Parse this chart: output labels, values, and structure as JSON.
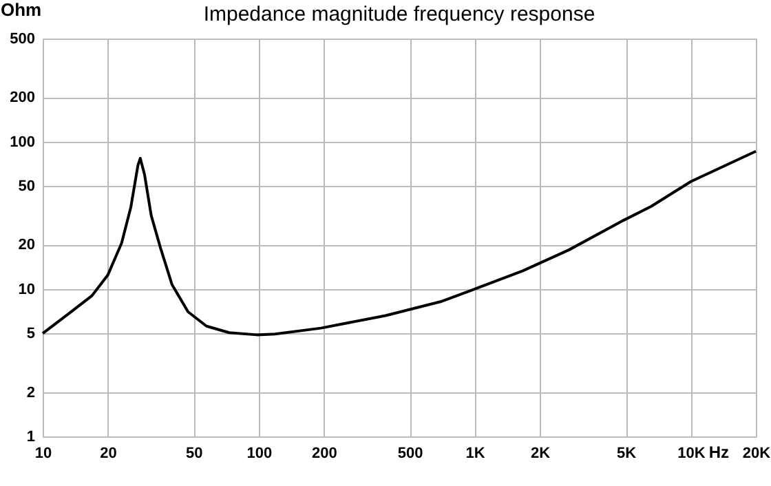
{
  "chart_data": {
    "type": "line",
    "title": "Impedance magnitude frequency response",
    "xlabel": "Hz",
    "ylabel": "Ohm",
    "x": [
      10,
      13.2,
      16.9,
      20,
      23.2,
      25.6,
      27.6,
      28.3,
      29.6,
      31.8,
      35.1,
      39.7,
      47.1,
      57.3,
      73,
      98,
      119,
      194,
      386,
      694,
      929,
      1670,
      2723,
      4896,
      6560,
      10000,
      20000
    ],
    "series": [
      {
        "color": "#000000",
        "values": [
          5.0,
          6.8,
          9.0,
          12.4,
          20.5,
          36,
          69,
          77,
          60,
          31.5,
          19,
          10.7,
          7.0,
          5.6,
          5.06,
          4.89,
          4.95,
          5.43,
          6.6,
          8.2,
          9.6,
          13.3,
          18.4,
          29.3,
          36.4,
          53.6,
          86
        ]
      }
    ],
    "log": "xy",
    "grid": true,
    "marker": "none",
    "line_style": "solid",
    "xlim": [
      10,
      20000
    ],
    "xticks": [
      10,
      20,
      50,
      100,
      200,
      500,
      {
        "value": 1000,
        "label": "1K"
      },
      {
        "value": 2000,
        "label": "2K"
      },
      {
        "value": 5000,
        "label": "5K"
      },
      {
        "value": 10000,
        "label": "10K"
      },
      {
        "value": 20000,
        "label": "20K"
      }
    ],
    "ylim": [
      1,
      500
    ],
    "yticks": [
      1,
      2,
      5,
      10,
      20,
      50,
      100,
      200,
      500
    ]
  }
}
